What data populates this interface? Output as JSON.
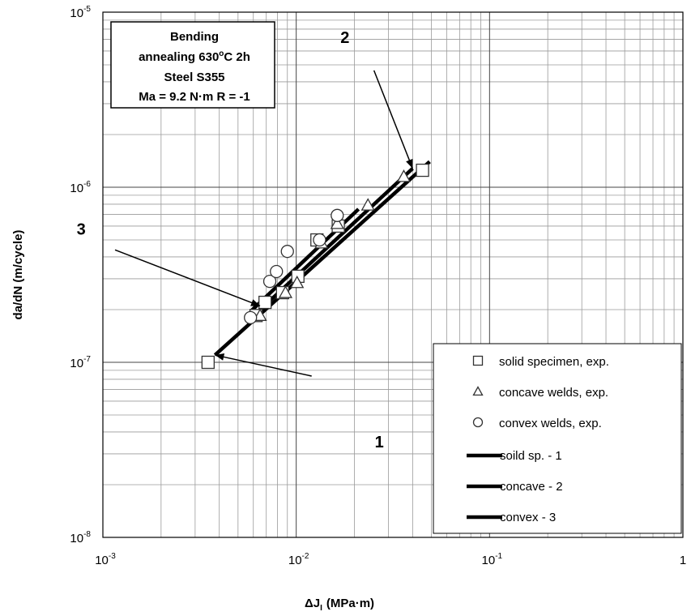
{
  "chart_data": {
    "type": "scatter",
    "xlabel": "ΔJ",
    "xlabel_sub": "I",
    "xlabel_units": "(MPa·m)",
    "ylabel": "da/dN (m/cycle)",
    "xscale": "log",
    "yscale": "log",
    "xlim": [
      0.001,
      1
    ],
    "ylim": [
      1e-08,
      1e-05
    ],
    "x_ticks": [
      {
        "base": "10",
        "exp": "-3"
      },
      {
        "base": "10",
        "exp": "-2"
      },
      {
        "base": "10",
        "exp": "-1"
      },
      {
        "base": "1",
        "exp": ""
      }
    ],
    "y_ticks": [
      {
        "base": "10",
        "exp": "-8"
      },
      {
        "base": "10",
        "exp": "-7"
      },
      {
        "base": "10",
        "exp": "-6"
      },
      {
        "base": "10",
        "exp": "-5"
      }
    ],
    "grid": true,
    "info_box": [
      {
        "text": "Bending",
        "sup": ""
      },
      {
        "text": "annealing 630",
        "sup": "o",
        "after": "C 2h"
      },
      {
        "text": "Steel S355",
        "sup": ""
      },
      {
        "text": "Ma = 9.2 N·m R = -1",
        "sup": ""
      }
    ],
    "series": [
      {
        "name": "solid specimen, exp.",
        "marker": "square",
        "x": [
          0.0035,
          0.0062,
          0.0069,
          0.0085,
          0.0102,
          0.0128,
          0.0165,
          0.045
        ],
        "y": [
          1e-07,
          1.85e-07,
          2.2e-07,
          2.5e-07,
          3.1e-07,
          5e-07,
          6e-07,
          1.25e-06
        ]
      },
      {
        "name": "concave welds, exp.",
        "marker": "triangle",
        "x": [
          0.0065,
          0.0088,
          0.0101,
          0.0135,
          0.0163,
          0.0235,
          0.036
        ],
        "y": [
          1.85e-07,
          2.5e-07,
          2.85e-07,
          4.8e-07,
          6.2e-07,
          7.9e-07,
          1.15e-06
        ]
      },
      {
        "name": "convex welds, exp.",
        "marker": "circle",
        "x": [
          0.0058,
          0.0073,
          0.0079,
          0.009,
          0.0132,
          0.0163
        ],
        "y": [
          1.8e-07,
          2.9e-07,
          3.3e-07,
          4.3e-07,
          5e-07,
          6.9e-07
        ]
      },
      {
        "name": "soild sp. - 1",
        "type": "line",
        "x": [
          0.0038,
          0.049
        ],
        "y": [
          1.1e-07,
          1.4e-06
        ]
      },
      {
        "name": "concave - 2",
        "type": "line",
        "x": [
          0.0062,
          0.04
        ],
        "y": [
          1.9e-07,
          1.28e-06
        ]
      },
      {
        "name": "convex - 3",
        "type": "line",
        "x": [
          0.0058,
          0.021
        ],
        "y": [
          1.95e-07,
          7.5e-07
        ]
      }
    ],
    "annotations": [
      {
        "label": "1",
        "points_to": {
          "x": 0.0038,
          "y": 1.1e-07
        }
      },
      {
        "label": "2",
        "points_to": {
          "x": 0.04,
          "y": 1.28e-06
        }
      },
      {
        "label": "3",
        "points_to": {
          "x": 0.0065,
          "y": 2.1e-07
        }
      }
    ],
    "legend_position": "bottom-right"
  }
}
